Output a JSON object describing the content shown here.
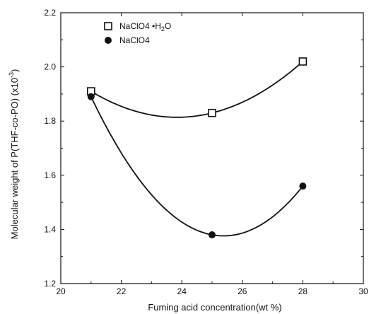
{
  "chart_data": {
    "type": "scatter",
    "title": "",
    "xlabel": "Fuming acid concentration(wt %)",
    "ylabel": "Molecular weight of P(THF-co-PO) (x10",
    "ylabel_exponent": "-3",
    "ylabel_close": ")",
    "xlim": [
      20,
      30
    ],
    "ylim": [
      1.2,
      2.2
    ],
    "xticks": [
      "20",
      "22",
      "24",
      "26",
      "28",
      "30"
    ],
    "yticks": [
      "1.2",
      "1.4",
      "1.6",
      "1.8",
      "2.0",
      "2.2"
    ],
    "grid": false,
    "legend_position": "top-left",
    "series": [
      {
        "name": "NaClO4 •H2O",
        "legend_main": "NaClO4 •H",
        "legend_sub": "2",
        "legend_end": "O",
        "marker": "open-square",
        "x": [
          21,
          25,
          28
        ],
        "y": [
          1.91,
          1.83,
          2.02
        ],
        "fit_curve": true
      },
      {
        "name": "NaClO4",
        "legend_main": "NaClO4",
        "marker": "filled-circle",
        "x": [
          21,
          25,
          28
        ],
        "y": [
          1.89,
          1.38,
          1.56
        ],
        "fit_curve": true
      }
    ]
  }
}
